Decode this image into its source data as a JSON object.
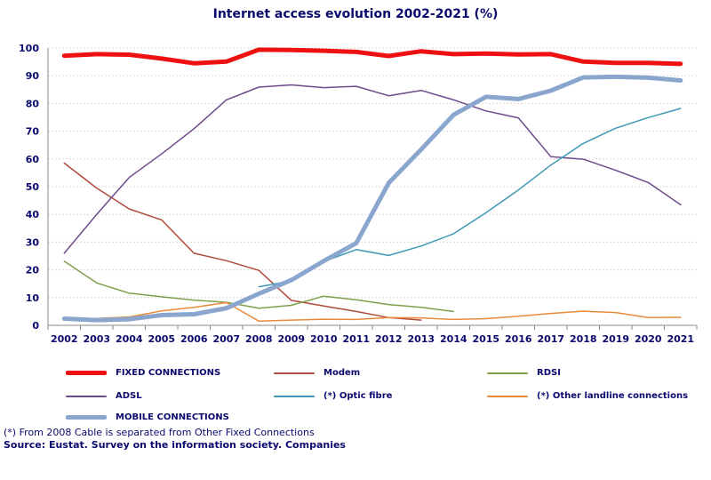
{
  "chart_data": {
    "type": "line",
    "title": "Internet access evolution 2002-2021 (%)",
    "xlabel": "",
    "ylabel": "",
    "ylim": [
      0,
      100
    ],
    "yticks": [
      0,
      10,
      20,
      30,
      40,
      50,
      60,
      70,
      80,
      90,
      100
    ],
    "grid": true,
    "legend_position": "bottom",
    "categories": [
      "2002",
      "2003",
      "2004",
      "2005",
      "2006",
      "2007",
      "2008",
      "2009",
      "2010",
      "2011",
      "2012",
      "2013",
      "2014",
      "2015",
      "2016",
      "2017",
      "2018",
      "2019",
      "2020",
      "2021"
    ],
    "series": [
      {
        "name": "FIXED CONNECTIONS",
        "color": "#ee1111",
        "width": 5,
        "values": [
          97.2,
          97.8,
          97.6,
          96.2,
          94.5,
          95.1,
          99.4,
          99.3,
          99.0,
          98.6,
          97.1,
          98.8,
          97.8,
          98.0,
          97.7,
          97.8,
          95.1,
          94.6,
          94.6,
          94.3
        ]
      },
      {
        "name": "Modem",
        "color": "#b04a3c",
        "width": 1.5,
        "values": [
          58.5,
          49.5,
          42.0,
          38.0,
          26.0,
          23.3,
          19.8,
          9.0,
          7.0,
          5.0,
          2.8,
          1.9,
          null,
          null,
          null,
          null,
          null,
          null,
          null,
          null
        ]
      },
      {
        "name": "RDSI",
        "color": "#7fa04a",
        "width": 1.5,
        "values": [
          23.1,
          15.3,
          11.6,
          10.3,
          9.1,
          8.3,
          6.2,
          7.2,
          10.5,
          9.2,
          7.5,
          6.5,
          5.0,
          null,
          null,
          null,
          null,
          null,
          null,
          null
        ]
      },
      {
        "name": "ADSL",
        "color": "#6d4a8c",
        "width": 1.5,
        "values": [
          26.0,
          40.0,
          53.3,
          61.8,
          70.9,
          81.3,
          85.9,
          86.7,
          85.7,
          86.2,
          82.8,
          84.7,
          81.3,
          77.3,
          74.8,
          60.8,
          59.9,
          55.9,
          51.5,
          43.5
        ]
      },
      {
        "name": "(*) Optic fibre",
        "color": "#3f98b5",
        "width": 1.5,
        "values": [
          null,
          null,
          null,
          null,
          null,
          null,
          13.9,
          16.0,
          23.0,
          27.3,
          25.2,
          28.6,
          33.0,
          40.6,
          48.8,
          57.8,
          65.6,
          71.1,
          74.9,
          78.2
        ]
      },
      {
        "name": "(*) Other landline connections",
        "color": "#e88a3a",
        "width": 1.5,
        "values": [
          2.5,
          2.5,
          3.0,
          5.2,
          6.5,
          8.2,
          1.5,
          1.9,
          2.2,
          2.1,
          2.8,
          2.7,
          2.1,
          2.4,
          3.3,
          4.3,
          5.1,
          4.6,
          2.8,
          2.9
        ]
      },
      {
        "name": "MOBILE CONNECTIONS",
        "color": "#8aa6cf",
        "width": 5,
        "values": [
          2.4,
          1.9,
          2.2,
          3.7,
          4.0,
          6.2,
          11.4,
          16.3,
          23.2,
          29.6,
          51.3,
          63.4,
          75.9,
          82.4,
          81.6,
          84.6,
          89.4,
          89.6,
          89.3,
          88.3
        ]
      }
    ]
  },
  "footnote": "(*) From 2008 Cable is separated from Other Fixed Connections",
  "source": "Source: Eustat. Survey on the information society. Companies"
}
